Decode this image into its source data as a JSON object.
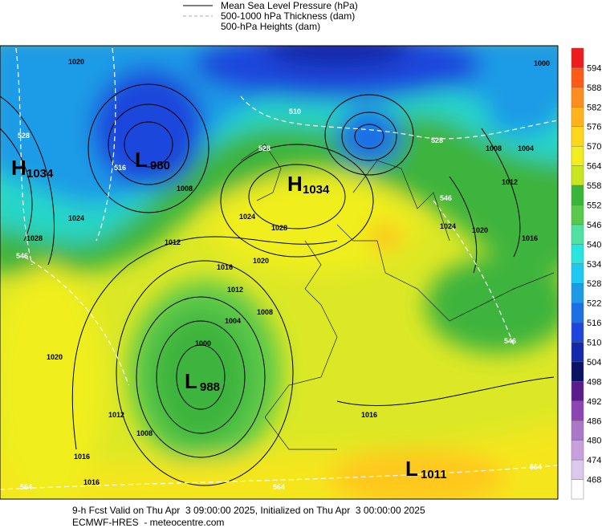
{
  "legend": [
    {
      "label": "Mean Sea Level Pressure (hPa)"
    },
    {
      "label": "500-1000 hPa Thickness (dam)"
    },
    {
      "label": "500-hPa Heights (dam)"
    }
  ],
  "colorbar": {
    "levels": [
      594,
      588,
      582,
      576,
      570,
      564,
      558,
      552,
      546,
      540,
      534,
      528,
      522,
      516,
      510,
      504,
      498,
      492,
      486,
      480,
      474,
      468
    ],
    "colors": [
      "#ee1c1c",
      "#ff5a1a",
      "#ff8c1e",
      "#ffb41e",
      "#ffd81e",
      "#f0ee1e",
      "#c8e61e",
      "#3cb43c",
      "#5ac84a",
      "#50e0a0",
      "#28e6dc",
      "#1ec8f0",
      "#1e9be6",
      "#1e6ee6",
      "#1e46dc",
      "#1428aa",
      "#0a1464",
      "#5a1e8c",
      "#8c46b4",
      "#aa78c8",
      "#c8a0dc",
      "#dcc8ec",
      "#ffffff"
    ]
  },
  "centers": [
    {
      "symbol": "H",
      "value": 1034
    },
    {
      "symbol": "L",
      "value": 980
    },
    {
      "symbol": "H",
      "value": 1034
    },
    {
      "symbol": "L",
      "value": 988
    },
    {
      "symbol": "L",
      "value": 1011
    }
  ],
  "contour_labels": [
    1020,
    1024,
    1028,
    1012,
    1008,
    1016,
    1020,
    1024,
    1028,
    1012,
    1008,
    1004,
    1000,
    1020,
    1012,
    1008,
    1016,
    1016,
    1016,
    1008,
    1004,
    1012,
    1016,
    1020,
    1024,
    1000
  ],
  "thickness_labels": [
    528,
    516,
    528,
    510,
    528,
    546,
    546,
    546,
    564,
    564,
    564
  ],
  "footer": {
    "line1": "9-h Fcst Valid on Thu Apr  3 09:00:00 2025, Initialized on Thu Apr  3 00:00:00 2025",
    "line2": "ECMWF-HRES  - meteocentre.com"
  }
}
